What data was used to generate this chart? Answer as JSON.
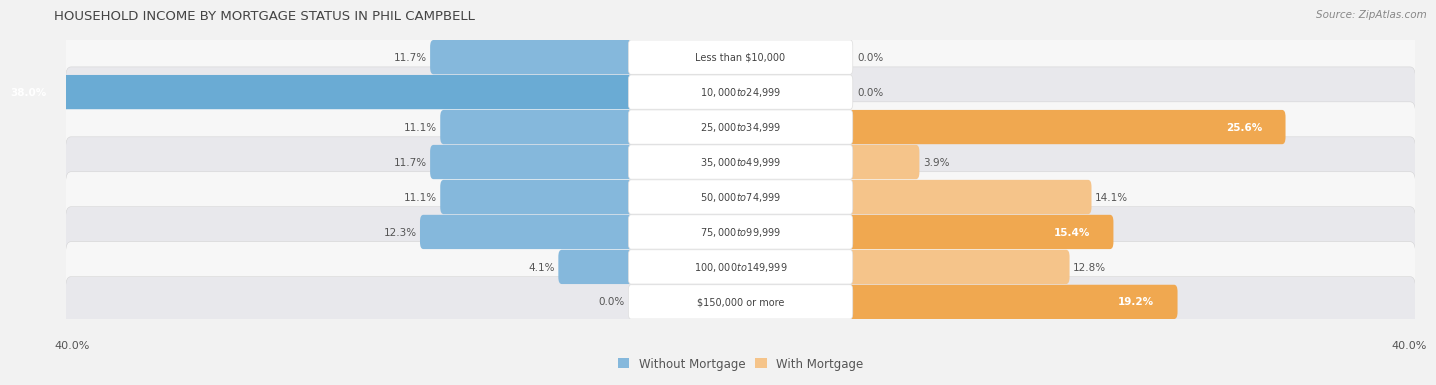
{
  "title": "HOUSEHOLD INCOME BY MORTGAGE STATUS IN PHIL CAMPBELL",
  "source": "Source: ZipAtlas.com",
  "categories": [
    "Less than $10,000",
    "$10,000 to $24,999",
    "$25,000 to $34,999",
    "$35,000 to $49,999",
    "$50,000 to $74,999",
    "$75,000 to $99,999",
    "$100,000 to $149,999",
    "$150,000 or more"
  ],
  "without_mortgage": [
    11.7,
    38.0,
    11.1,
    11.7,
    11.1,
    12.3,
    4.1,
    0.0
  ],
  "with_mortgage": [
    0.0,
    0.0,
    25.6,
    3.9,
    14.1,
    15.4,
    12.8,
    19.2
  ],
  "without_mortgage_color": "#85b8dc",
  "with_mortgage_color": "#f5c48a",
  "without_mortgage_color_large": "#6aabd4",
  "with_mortgage_color_large": "#f0a850",
  "axis_max": 40.0,
  "background_color": "#f2f2f2",
  "row_colors": [
    "#f7f7f7",
    "#e8e8ec"
  ],
  "label_threshold": 15.0,
  "bottom_label": "40.0%"
}
